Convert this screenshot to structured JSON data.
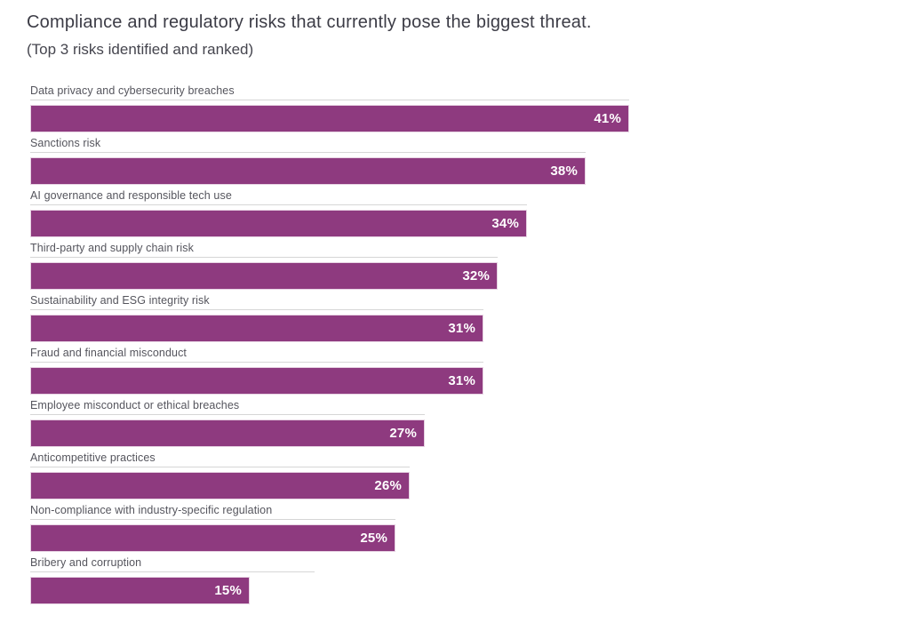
{
  "header": {
    "title": "Compliance and regulatory risks that currently pose the biggest threat.",
    "subtitle": "(Top 3 risks identified and ranked)"
  },
  "chart_data": {
    "type": "bar",
    "orientation": "horizontal",
    "title": "Compliance and regulatory risks that currently pose the biggest threat.",
    "subtitle": "(Top 3 risks identified and ranked)",
    "categories": [
      "Data privacy and cybersecurity breaches",
      "Sanctions risk",
      "AI governance and responsible tech use",
      "Third-party and supply chain risk",
      "Sustainability and ESG integrity risk",
      "Fraud and financial misconduct",
      "Employee misconduct or ethical breaches",
      "Anticompetitive practices",
      "Non-compliance with industry-specific regulation",
      "Bribery and corruption"
    ],
    "values": [
      41,
      38,
      34,
      32,
      31,
      31,
      27,
      26,
      25,
      15
    ],
    "value_suffix": "%",
    "data_labels": [
      "41%",
      "38%",
      "34%",
      "32%",
      "31%",
      "31%",
      "27%",
      "26%",
      "25%",
      "15%"
    ],
    "bar_color": "#8e3a7f",
    "bar_border_color": "#e7d3e3",
    "value_label_color": "#ffffff",
    "category_label_color": "#55555d",
    "xlim": [
      0,
      45
    ],
    "grid": false,
    "legend": false
  }
}
